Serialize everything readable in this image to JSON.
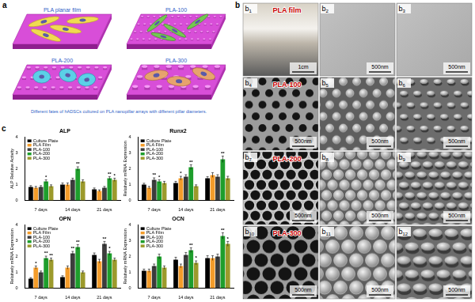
{
  "panels": {
    "a": {
      "label": "a",
      "images": [
        {
          "title": "PLA planar film"
        },
        {
          "title": "PLA-100"
        },
        {
          "title": "PLA-200"
        },
        {
          "title": "PLA-300"
        }
      ],
      "caption": "Different fates of hADSCs cultured on PLA nanopillar arrays with different pillar diameters."
    },
    "b": {
      "label": "b",
      "images": [
        {
          "label": "b1",
          "title": "PLA film",
          "scale_bar": "1cm"
        },
        {
          "label": "b2",
          "scale_bar": "500nm"
        },
        {
          "label": "b3",
          "scale_bar": "500nm"
        },
        {
          "label": "b4",
          "title": "PLA-100",
          "scale_bar": "500nm"
        },
        {
          "label": "b5",
          "scale_bar": "500nm"
        },
        {
          "label": "b6",
          "scale_bar": "500nm"
        },
        {
          "label": "b7",
          "title": "PLA-200",
          "scale_bar": "500nm"
        },
        {
          "label": "b8",
          "scale_bar": "500nm"
        },
        {
          "label": "b9",
          "scale_bar": "500nm"
        },
        {
          "label": "b10",
          "title": "PLA-300",
          "scale_bar": "500nm"
        },
        {
          "label": "b11",
          "scale_bar": "500nm"
        },
        {
          "label": "b12",
          "scale_bar": "500nm"
        }
      ]
    },
    "c": {
      "label": "c"
    }
  },
  "chart_data": [
    {
      "type": "bar",
      "title": "ALP",
      "ylabel": "ALP Relative Activity",
      "categories": [
        "7 days",
        "14 days",
        "21 days"
      ],
      "series": [
        {
          "name": "Culture Plate",
          "color": "#000000",
          "values": [
            0.85,
            1.0,
            0.7
          ],
          "errors": [
            0.08,
            0.1,
            0.08
          ],
          "significance": [
            null,
            null,
            null
          ]
        },
        {
          "name": "PLA Film",
          "color": "#f39c2a",
          "values": [
            0.8,
            1.0,
            0.6
          ],
          "errors": [
            0.08,
            0.1,
            0.06
          ],
          "significance": [
            null,
            null,
            null
          ]
        },
        {
          "name": "PLA-100",
          "color": "#3c3c3c",
          "values": [
            0.85,
            1.3,
            0.8
          ],
          "errors": [
            0.08,
            0.1,
            0.08
          ],
          "significance": [
            null,
            null,
            null
          ]
        },
        {
          "name": "PLA-200",
          "color": "#1e9e2c",
          "values": [
            1.2,
            2.0,
            1.4
          ],
          "errors": [
            0.1,
            0.12,
            0.1
          ],
          "significance": [
            "*",
            "**",
            "**"
          ]
        },
        {
          "name": "PLA-300",
          "color": "#9c9a2c",
          "values": [
            0.9,
            1.2,
            1.3
          ],
          "errors": [
            0.08,
            0.1,
            0.1
          ],
          "significance": [
            null,
            null,
            "*"
          ]
        }
      ],
      "ylim": [
        0,
        4
      ],
      "yticks": [
        0,
        1,
        2,
        3,
        4
      ],
      "grid": false,
      "legend": "upper left"
    },
    {
      "type": "bar",
      "title": "Runx2",
      "ylabel": "Relatively mRNA Expression",
      "categories": [
        "7 days",
        "14 days",
        "21 days"
      ],
      "series": [
        {
          "name": "Culture Plate",
          "color": "#000000",
          "values": [
            1.0,
            1.1,
            1.4
          ],
          "errors": [
            0.08,
            0.1,
            0.1
          ],
          "significance": [
            null,
            null,
            null
          ]
        },
        {
          "name": "PLA Film",
          "color": "#f39c2a",
          "values": [
            0.8,
            1.4,
            1.6
          ],
          "errors": [
            0.08,
            0.12,
            0.15
          ],
          "significance": [
            null,
            "*",
            null
          ]
        },
        {
          "name": "PLA-100",
          "color": "#3c3c3c",
          "values": [
            1.3,
            1.5,
            1.5
          ],
          "errors": [
            0.12,
            0.12,
            0.12
          ],
          "significance": [
            "**",
            null,
            null
          ]
        },
        {
          "name": "PLA-200",
          "color": "#1e9e2c",
          "values": [
            1.2,
            2.1,
            2.6
          ],
          "errors": [
            0.1,
            0.15,
            0.2
          ],
          "significance": [
            "*",
            "**",
            "**"
          ]
        },
        {
          "name": "PLA-300",
          "color": "#9c9a2c",
          "values": [
            1.1,
            0.9,
            1.4
          ],
          "errors": [
            0.1,
            0.08,
            0.12
          ],
          "significance": [
            null,
            null,
            null
          ]
        }
      ],
      "ylim": [
        0,
        4
      ],
      "yticks": [
        0,
        1,
        2,
        3,
        4
      ],
      "grid": false,
      "legend": "upper left"
    },
    {
      "type": "bar",
      "title": "OPN",
      "ylabel": "Relatively mRNA Expression",
      "categories": [
        "7 days",
        "14 days",
        "21 days"
      ],
      "series": [
        {
          "name": "Culture Plate",
          "color": "#000000",
          "values": [
            0.6,
            0.7,
            2.1
          ],
          "errors": [
            0.06,
            0.08,
            0.12
          ],
          "significance": [
            null,
            null,
            null
          ]
        },
        {
          "name": "PLA Film",
          "color": "#f39c2a",
          "values": [
            1.3,
            1.3,
            1.7
          ],
          "errors": [
            0.1,
            0.1,
            0.12
          ],
          "significance": [
            "*",
            null,
            null
          ]
        },
        {
          "name": "PLA-100",
          "color": "#3c3c3c",
          "values": [
            1.0,
            2.2,
            2.8
          ],
          "errors": [
            0.08,
            0.12,
            0.15
          ],
          "significance": [
            null,
            "**",
            "**"
          ]
        },
        {
          "name": "PLA-200",
          "color": "#1e9e2c",
          "values": [
            1.9,
            2.6,
            2.2
          ],
          "errors": [
            0.12,
            0.15,
            0.12
          ],
          "significance": [
            "**",
            "**",
            "*"
          ]
        },
        {
          "name": "PLA-300",
          "color": "#9c9a2c",
          "values": [
            1.8,
            1.0,
            1.8
          ],
          "errors": [
            0.1,
            0.08,
            0.1
          ],
          "significance": [
            "**",
            null,
            null
          ]
        }
      ],
      "ylim": [
        0,
        4
      ],
      "yticks": [
        0,
        1,
        2,
        3,
        4
      ],
      "grid": false,
      "legend": "upper left"
    },
    {
      "type": "bar",
      "title": "OCN",
      "ylabel": "Relatively mRNA Expression",
      "categories": [
        "7 days",
        "14 days",
        "21 days"
      ],
      "series": [
        {
          "name": "Culture Plate",
          "color": "#000000",
          "values": [
            1.1,
            1.8,
            1.9
          ],
          "errors": [
            0.1,
            0.15,
            0.15
          ],
          "significance": [
            null,
            null,
            null
          ]
        },
        {
          "name": "PLA Film",
          "color": "#f39c2a",
          "values": [
            1.1,
            1.4,
            1.9
          ],
          "errors": [
            0.1,
            0.12,
            0.15
          ],
          "significance": [
            null,
            null,
            null
          ]
        },
        {
          "name": "PLA-100",
          "color": "#3c3c3c",
          "values": [
            1.4,
            2.1,
            2.0
          ],
          "errors": [
            0.12,
            0.15,
            0.15
          ],
          "significance": [
            null,
            null,
            null
          ]
        },
        {
          "name": "PLA-200",
          "color": "#1e9e2c",
          "values": [
            2.0,
            2.4,
            3.3
          ],
          "errors": [
            0.15,
            0.15,
            0.2
          ],
          "significance": [
            null,
            "**",
            "**"
          ]
        },
        {
          "name": "PLA-300",
          "color": "#9c9a2c",
          "values": [
            1.3,
            1.6,
            2.8
          ],
          "errors": [
            0.1,
            0.12,
            0.15
          ],
          "significance": [
            null,
            "*",
            "*"
          ]
        }
      ],
      "ylim": [
        0,
        4
      ],
      "yticks": [
        0,
        1,
        2,
        3,
        4
      ],
      "grid": false,
      "legend": "upper left"
    }
  ]
}
